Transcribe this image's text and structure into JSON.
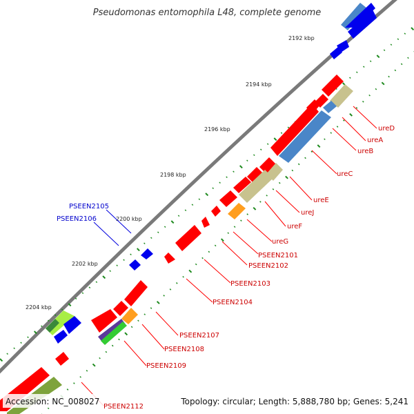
{
  "title": "Pseudomonas entomophila L48, complete genome",
  "footer": {
    "accession": "Accession: NC_008027",
    "summary": "Topology: circular; Length: 5,888,780 bp; Genes: 5,241"
  },
  "colors": {
    "backbone": "#7a7a7a",
    "tick": "#1e8a1e",
    "gene_red": "#ff0000",
    "gene_blue": "#0000ee",
    "gene_khaki": "#c8c28e",
    "gene_steelblue": "#4a86c8",
    "gene_orange": "#ff9e1f",
    "gene_lime": "#a8ee44",
    "gene_olive": "#7ea33c",
    "gene_purple": "#5a3a9a",
    "label_red": "#cc0000",
    "label_blue": "#0000cc"
  },
  "ruler": [
    {
      "label": "2192 kbp"
    },
    {
      "label": "2194 kbp"
    },
    {
      "label": "2196 kbp"
    },
    {
      "label": "2198 kbp"
    },
    {
      "label": "2200 kbp"
    },
    {
      "label": "2202 kbp"
    },
    {
      "label": "2204 kbp"
    }
  ],
  "gene_labels": [
    {
      "name": "ureD",
      "color": "red"
    },
    {
      "name": "ureA",
      "color": "red"
    },
    {
      "name": "ureB",
      "color": "red"
    },
    {
      "name": "ureC",
      "color": "red"
    },
    {
      "name": "ureE",
      "color": "red"
    },
    {
      "name": "ureJ",
      "color": "red"
    },
    {
      "name": "ureF",
      "color": "red"
    },
    {
      "name": "ureG",
      "color": "red"
    },
    {
      "name": "PSEEN2101",
      "color": "red"
    },
    {
      "name": "PSEEN2102",
      "color": "red"
    },
    {
      "name": "PSEEN2103",
      "color": "red"
    },
    {
      "name": "PSEEN2104",
      "color": "red"
    },
    {
      "name": "PSEEN2107",
      "color": "red"
    },
    {
      "name": "PSEEN2108",
      "color": "red"
    },
    {
      "name": "PSEEN2109",
      "color": "red"
    },
    {
      "name": "PSEEN2112",
      "color": "red"
    },
    {
      "name": "PSEEN2105",
      "color": "blue"
    },
    {
      "name": "PSEEN2106",
      "color": "blue"
    }
  ]
}
